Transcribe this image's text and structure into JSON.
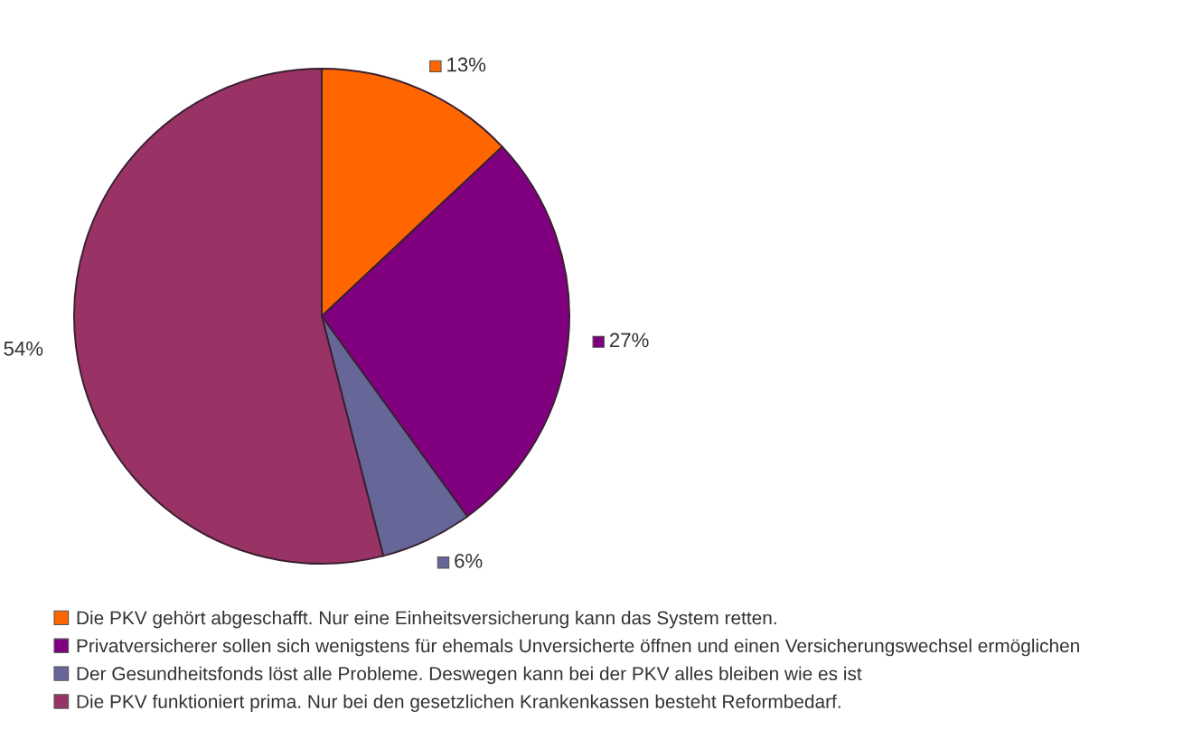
{
  "chart_data": {
    "type": "pie",
    "categories": [
      "Die PKV gehört abgeschafft. Nur eine Einheitsversicherung kann das System retten.",
      "Privatversicherer sollen sich wenigstens für ehemals Unversicherte öffnen und einen Versicherungswechsel ermöglichen",
      "Der Gesundheitsfonds löst alle Probleme. Deswegen kann bei der PKV alles bleiben wie es ist",
      "Die PKV funktioniert prima. Nur bei den gesetzlichen Krankenkassen besteht Reformbedarf."
    ],
    "values": [
      13,
      27,
      6,
      54
    ],
    "colors": [
      "#ff6600",
      "#800080",
      "#666699",
      "#993366"
    ],
    "value_labels": [
      "13%",
      "27%",
      "6%",
      "54%"
    ],
    "legend": "bottom"
  }
}
